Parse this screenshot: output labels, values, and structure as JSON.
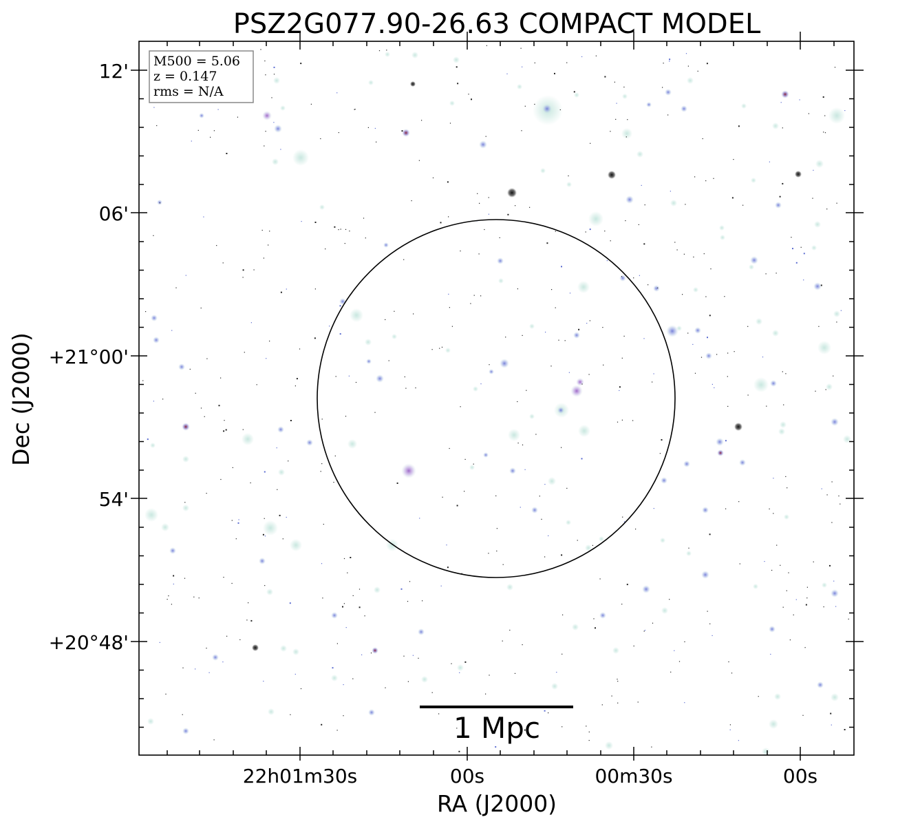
{
  "figure": {
    "title": "PSZ2G077.90-26.63 COMPACT MODEL",
    "xlabel": "RA (J2000)",
    "ylabel": "Dec (J2000)",
    "x_ticks": [
      "22h01m30s",
      "00s",
      "00m30s",
      "00s"
    ],
    "y_ticks": [
      "12'",
      "06'",
      "+21°00'",
      "54'",
      "+20°48'"
    ]
  },
  "infobox": {
    "line1": "M500 = 5.06",
    "line2": "z = 0.147",
    "line3": "rms = N/A"
  },
  "scalebar": {
    "label": "1 Mpc"
  },
  "colors": {
    "axes": "#000000",
    "source_faint": "#bfe3da",
    "source_blue": "#6f79d6",
    "source_purple": "#9a5fc4",
    "source_dark": "#111111",
    "source_red": "#8a1a2a"
  }
}
